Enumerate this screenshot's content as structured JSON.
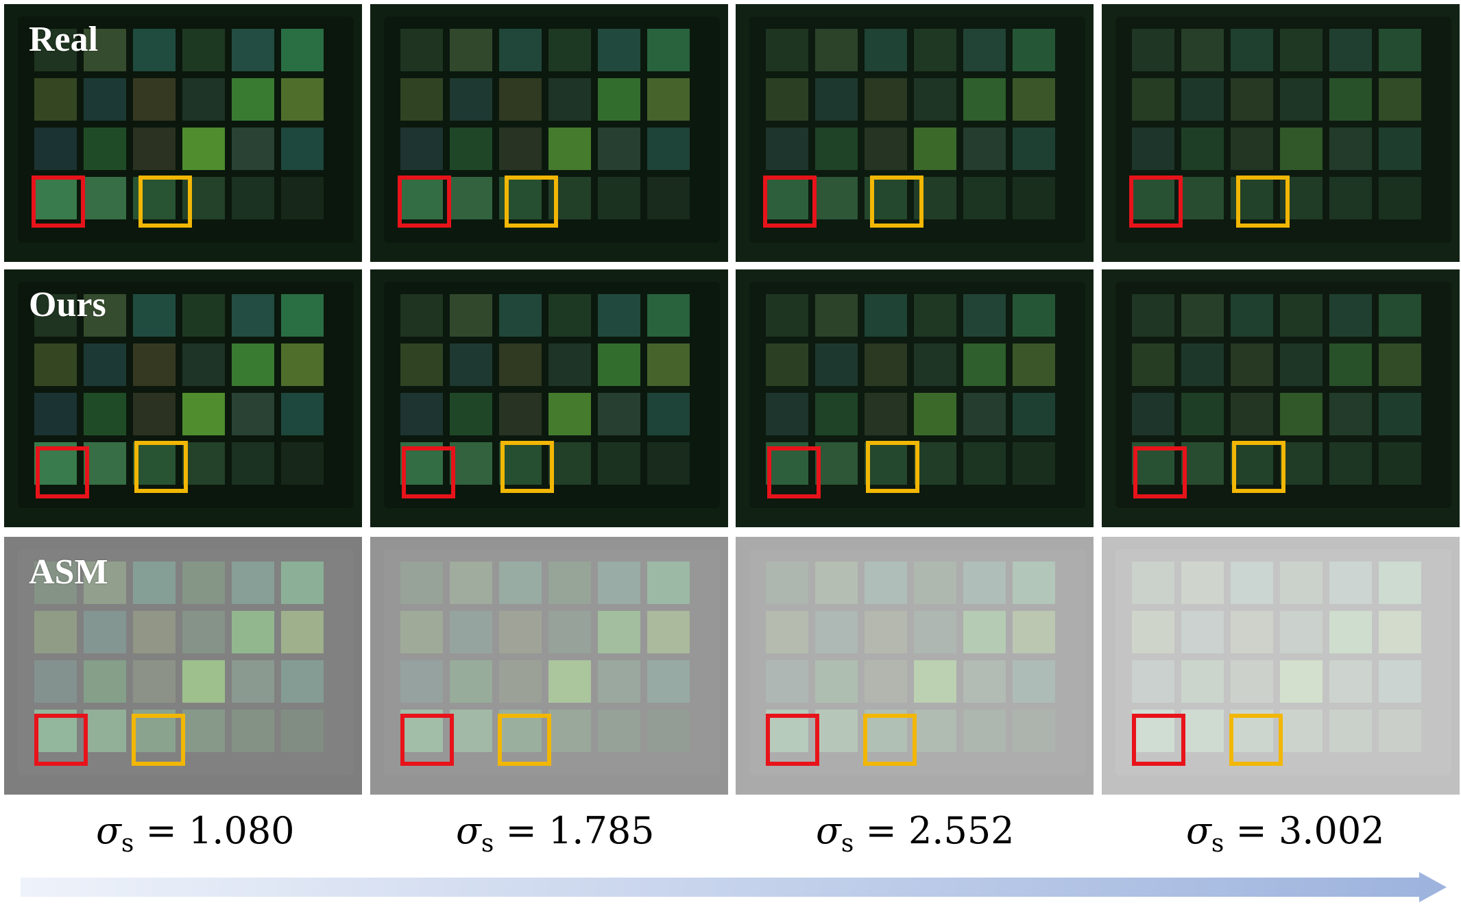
{
  "row_labels": [
    "Real",
    "Ours",
    "ASM"
  ],
  "sigma": {
    "symbol": "σ",
    "subscript": "s",
    "values": [
      "1.080",
      "1.785",
      "2.552",
      "3.002"
    ]
  },
  "colors": {
    "red_box": "#e8131a",
    "yellow_box": "#f2b705"
  }
}
